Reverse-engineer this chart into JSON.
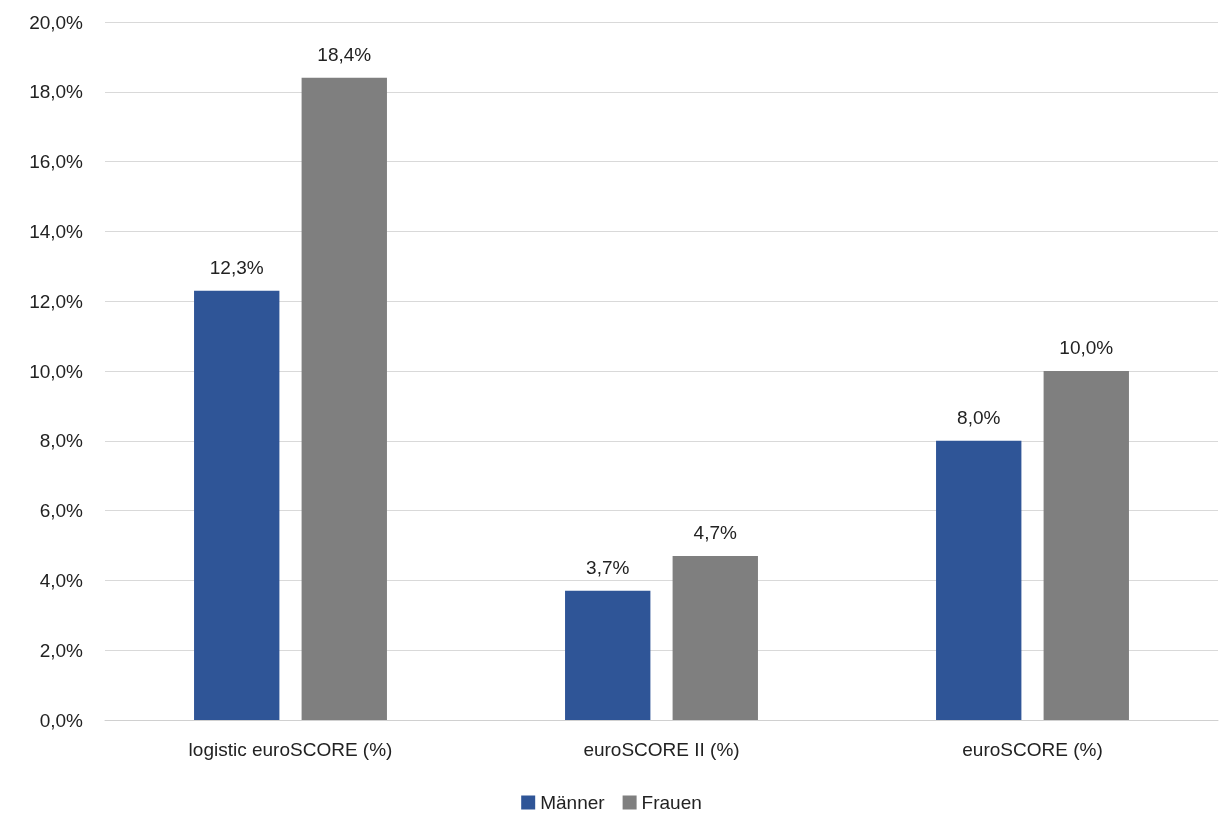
{
  "chart_data": {
    "type": "bar",
    "categories": [
      "logistic euroSCORE (%)",
      "euroSCORE II (%)",
      "euroSCORE (%)"
    ],
    "series": [
      {
        "name": "Männer",
        "color": "#2f5597",
        "values": [
          12.3,
          3.7,
          8.0
        ],
        "value_labels": [
          "12,3%",
          "3,7%",
          "8,0%"
        ]
      },
      {
        "name": "Frauen",
        "color": "#7f7f7f",
        "values": [
          18.4,
          4.7,
          10.0
        ],
        "value_labels": [
          "18,4%",
          "4,7%",
          "10,0%"
        ]
      }
    ],
    "ylim": [
      0,
      20
    ],
    "yticks": [
      {
        "value": 0,
        "label": "0,0%"
      },
      {
        "value": 2,
        "label": "2,0%"
      },
      {
        "value": 4,
        "label": "4,0%"
      },
      {
        "value": 6,
        "label": "6,0%"
      },
      {
        "value": 8,
        "label": "8,0%"
      },
      {
        "value": 10,
        "label": "10,0%"
      },
      {
        "value": 12,
        "label": "12,0%"
      },
      {
        "value": 14,
        "label": "14,0%"
      },
      {
        "value": 16,
        "label": "16,0%"
      },
      {
        "value": 18,
        "label": "18,0%"
      },
      {
        "value": 20,
        "label": "20,0%"
      }
    ],
    "grid": "y",
    "legend": "bottom"
  }
}
